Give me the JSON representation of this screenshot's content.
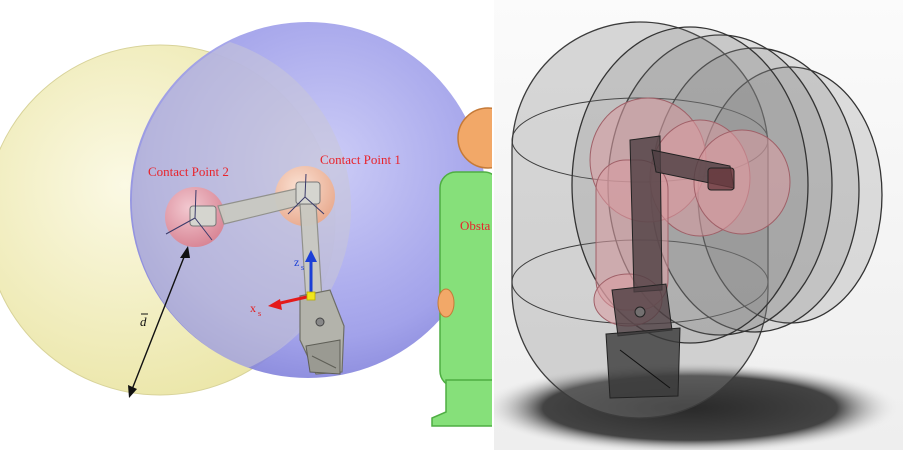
{
  "left_panel": {
    "labels": {
      "contact_point_1": "Contact Point 1",
      "contact_point_2": "Contact Point 2",
      "obstacle": "Obsta",
      "distance_symbol": "d",
      "axis_z": "z",
      "axis_x": "x",
      "axis_sub": "s"
    },
    "colors": {
      "yellow_sphere": "#f3f0c2",
      "blue_sphere": "#9c9cea",
      "contact_sphere_pink": "#e79aa8",
      "contact_sphere_peach": "#f4c2a5",
      "label_red": "#e8242c",
      "obstacle_green": "#86e07a",
      "obstacle_head": "#f2a868",
      "z_axis_blue": "#1c3fd6",
      "x_axis_red": "#e41a1a",
      "origin_yellow": "#f0e61c"
    }
  },
  "right_panel": {
    "colors": {
      "capsule_gray": "#8c8c8c",
      "background": "#f3f3f3",
      "shadow": "#2e2e2e",
      "link_pink": "#d99ba0"
    }
  }
}
